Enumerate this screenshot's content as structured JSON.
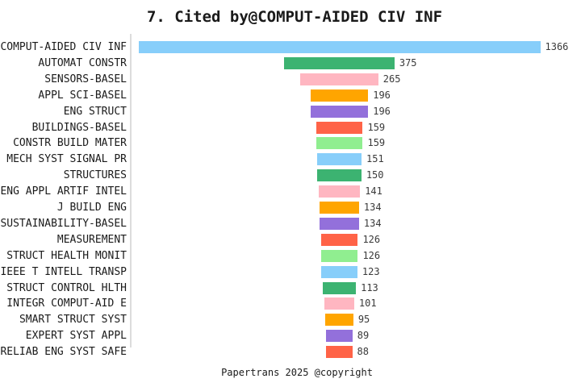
{
  "title": "7. Cited by@COMPUT-AIDED CIV INF",
  "footer": "Papertrans 2025 @copyright",
  "chart_data": {
    "type": "bar",
    "orientation": "horizontal",
    "style": "centered-funnel-bars",
    "title": "7. Cited by@COMPUT-AIDED CIV INF",
    "xlabel": "",
    "ylabel": "",
    "grid": false,
    "legend": false,
    "value_labels": "right-of-bar-end",
    "categories": [
      "COMPUT-AIDED CIV INF",
      "AUTOMAT CONSTR",
      "SENSORS-BASEL",
      "APPL SCI-BASEL",
      "ENG STRUCT",
      "BUILDINGS-BASEL",
      "CONSTR BUILD MATER",
      "MECH SYST SIGNAL PR",
      "STRUCTURES",
      "ENG APPL ARTIF INTEL",
      "J BUILD ENG",
      "SUSTAINABILITY-BASEL",
      "MEASUREMENT",
      "STRUCT HEALTH MONIT",
      "IEEE T INTELL TRANSP",
      "STRUCT CONTROL HLTH",
      "INTEGR COMPUT-AID E",
      "SMART STRUCT SYST",
      "EXPERT SYST APPL",
      "RELIAB ENG SYST SAFE"
    ],
    "values": [
      1366,
      375,
      265,
      196,
      196,
      159,
      159,
      151,
      150,
      141,
      134,
      134,
      126,
      126,
      123,
      113,
      101,
      95,
      89,
      88
    ],
    "palette": [
      "#87CEFA",
      "#3CB371",
      "#FFB6C1",
      "#FFA500",
      "#9370DB",
      "#FF6347",
      "#90EE90"
    ],
    "axis_line_color": "#dcdcdc",
    "text_color": "#1a1a1a",
    "value_text_color": "#3a3a3a",
    "background_color": "#ffffff"
  }
}
